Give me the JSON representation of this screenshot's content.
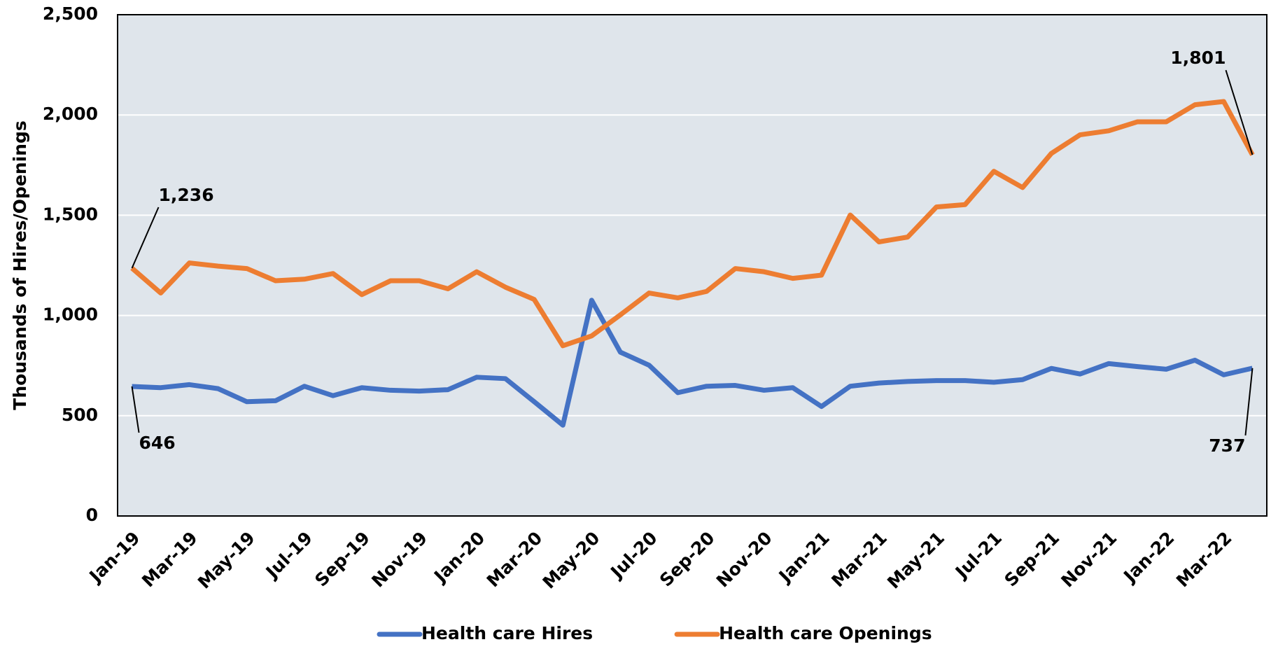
{
  "chart_data": {
    "type": "line",
    "y_label": "Thousands of Hires/Openings",
    "categories": [
      "Jan-19",
      null,
      "Mar-19",
      null,
      "May-19",
      null,
      "Jul-19",
      null,
      "Sep-19",
      null,
      "Nov-19",
      null,
      "Jan-20",
      null,
      "Mar-20",
      null,
      "May-20",
      null,
      "Jul-20",
      null,
      "Sep-20",
      null,
      "Nov-20",
      null,
      "Jan-21",
      null,
      "Mar-21",
      null,
      "May-21",
      null,
      "Jul-21",
      null,
      "Sep-21",
      null,
      "Nov-21",
      null,
      "Jan-22",
      null,
      "Mar-22",
      null
    ],
    "series": [
      {
        "name": "Health care Hires",
        "color": "#4472c4",
        "values": [
          646,
          640,
          655,
          635,
          570,
          575,
          647,
          600,
          640,
          627,
          623,
          630,
          692,
          685,
          570,
          453,
          1076,
          817,
          752,
          615,
          647,
          651,
          627,
          640,
          546,
          647,
          663,
          671,
          675,
          675,
          667,
          680,
          736,
          708,
          760,
          745,
          732,
          777,
          704,
          737
        ],
        "value_labels": [
          "646",
          null,
          null,
          null,
          null,
          null,
          null,
          null,
          null,
          null,
          null,
          null,
          null,
          null,
          null,
          null,
          null,
          null,
          null,
          null,
          null,
          null,
          null,
          null,
          null,
          null,
          null,
          null,
          null,
          null,
          null,
          null,
          null,
          null,
          null,
          null,
          null,
          null,
          null,
          "737"
        ]
      },
      {
        "name": "Health care Openings",
        "color": "#ed7d31",
        "values": [
          1236,
          1112,
          1262,
          1246,
          1234,
          1173,
          1181,
          1209,
          1104,
          1173,
          1173,
          1133,
          1218,
          1141,
          1080,
          849,
          898,
          1003,
          1112,
          1088,
          1120,
          1234,
          1218,
          1185,
          1201,
          1501,
          1367,
          1391,
          1541,
          1553,
          1719,
          1638,
          1808,
          1901,
          1921,
          1966,
          1966,
          2051,
          2067,
          1801
        ],
        "value_labels": [
          "1,236",
          null,
          null,
          null,
          null,
          null,
          null,
          null,
          null,
          null,
          null,
          null,
          null,
          null,
          null,
          null,
          null,
          null,
          null,
          null,
          null,
          null,
          null,
          null,
          null,
          null,
          null,
          null,
          null,
          null,
          null,
          null,
          null,
          null,
          null,
          null,
          null,
          null,
          null,
          "1,801"
        ]
      }
    ],
    "ylim": [
      0,
      2500
    ],
    "yticks": [
      0,
      500,
      {
        "value": 1000,
        "label": "1,000"
      },
      {
        "value": 1500,
        "label": "1,500"
      },
      {
        "value": 2000,
        "label": "2,000"
      },
      {
        "value": 2500,
        "label": "2,500"
      }
    ],
    "grid": true,
    "legend": "bottom"
  }
}
